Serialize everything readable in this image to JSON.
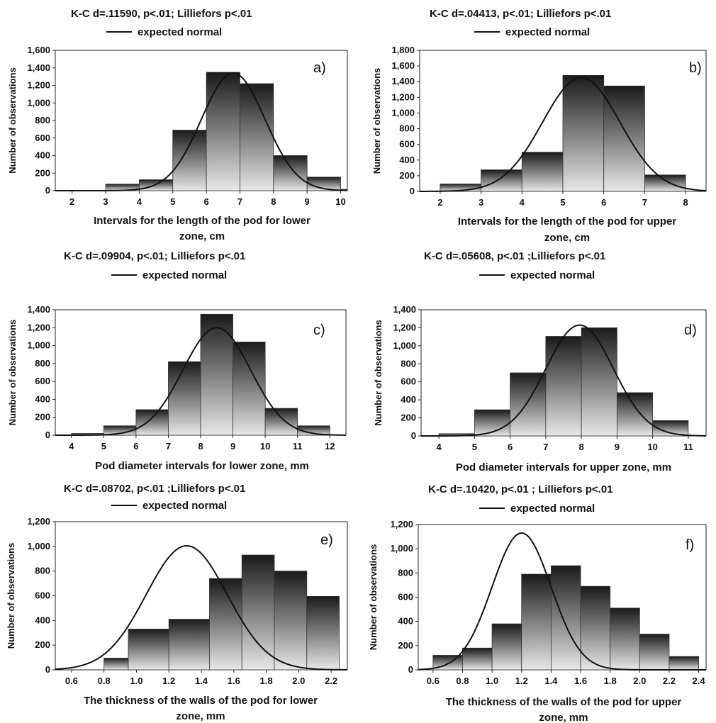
{
  "figure": {
    "panels": [
      {
        "id": "a",
        "panel_label": "a)",
        "stats_title": "K-C d=.11590, p<.01; Lilliefors p<.01",
        "legend_label": "expected normal",
        "ylabel": "Number of observations",
        "xlabel": [
          "Intervals for the length of the pod for lower",
          "zone, cm"
        ],
        "xticks": [
          "2",
          "3",
          "4",
          "5",
          "6",
          "7",
          "8",
          "9",
          "10"
        ],
        "yticks": [
          "0",
          "200",
          "400",
          "600",
          "800",
          "1,000",
          "1,200",
          "1,400",
          "1,600"
        ]
      },
      {
        "id": "b",
        "panel_label": "b)",
        "stats_title": "K-C d=.04413, p<.01; Lilliefors p<.01",
        "legend_label": "expected normal",
        "ylabel": "Number of observations",
        "xlabel": [
          "Intervals for the length of the pod for upper",
          "zone, cm"
        ],
        "xticks": [
          "2",
          "3",
          "4",
          "5",
          "6",
          "7",
          "8"
        ],
        "yticks": [
          "0",
          "200",
          "400",
          "600",
          "800",
          "1,000",
          "1,200",
          "1,400",
          "1,600",
          "1,800"
        ]
      },
      {
        "id": "c",
        "panel_label": "c)",
        "stats_title": "K-C d=.09904, p<.01; Lilliefors p<.01",
        "legend_label": "expected normal",
        "ylabel": "Number of observations",
        "xlabel": [
          "Pod diameter intervals for lower zone, mm"
        ],
        "xticks": [
          "4",
          "5",
          "6",
          "7",
          "8",
          "9",
          "10",
          "11",
          "12"
        ],
        "yticks": [
          "0",
          "200",
          "400",
          "600",
          "800",
          "1,000",
          "1,200",
          "1,400"
        ]
      },
      {
        "id": "d",
        "panel_label": "d)",
        "stats_title": "K-C d=.05608, p<.01 ;Lilliefors p<.01",
        "legend_label": "expected normal",
        "ylabel": "Number of observations",
        "xlabel": [
          "Pod diameter intervals for upper zone, mm"
        ],
        "xticks": [
          "4",
          "5",
          "6",
          "7",
          "8",
          "9",
          "10",
          "11"
        ],
        "yticks": [
          "0",
          "200",
          "400",
          "600",
          "800",
          "1,000",
          "1,200",
          "1,400"
        ]
      },
      {
        "id": "e",
        "panel_label": "e)",
        "stats_title": "K-C d=.08702, p<.01 ;Lilliefors p<.01",
        "legend_label": "expected normal",
        "ylabel": "Number of observations",
        "xlabel": [
          "The thickness of the walls of the pod for lower",
          "zone, mm"
        ],
        "xticks": [
          "0.6",
          "0.8",
          "1.0",
          "1.2",
          "1.4",
          "1.6",
          "1.8",
          "2.0",
          "2.2"
        ],
        "yticks": [
          "0",
          "200",
          "400",
          "600",
          "800",
          "1,000",
          "1,200"
        ]
      },
      {
        "id": "f",
        "panel_label": "f)",
        "stats_title": "K-C d=.10420, p<.01 ; Lilliefors p<.01",
        "legend_label": "expected normal",
        "ylabel": "Number of observations",
        "xlabel": [
          "The thickness of the walls of the pod for upper",
          "zone, mm"
        ],
        "xticks": [
          "0.6",
          "0.8",
          "1.0",
          "1.2",
          "1.4",
          "1.6",
          "1.8",
          "2.0",
          "2.2",
          "2.4"
        ],
        "yticks": [
          "0",
          "200",
          "400",
          "600",
          "800",
          "1,000",
          "1,200"
        ]
      }
    ]
  },
  "chart_data": [
    {
      "type": "bar",
      "panel": "a",
      "xlim": [
        1.5,
        10.2
      ],
      "ylim": [
        0,
        1600
      ],
      "bins": [
        [
          3,
          4,
          75
        ],
        [
          4,
          5,
          125
        ],
        [
          5,
          6,
          690
        ],
        [
          6,
          7,
          1350
        ],
        [
          7,
          8,
          1220
        ],
        [
          8,
          9,
          400
        ],
        [
          9,
          10,
          155
        ],
        [
          10,
          11,
          15
        ]
      ],
      "normal": {
        "peak": 1340,
        "mean": 6.8,
        "sd": 0.95
      }
    },
    {
      "type": "bar",
      "panel": "b",
      "xlim": [
        1.5,
        8.5
      ],
      "ylim": [
        0,
        1800
      ],
      "bins": [
        [
          2,
          3,
          95
        ],
        [
          3,
          4,
          275
        ],
        [
          4,
          5,
          500
        ],
        [
          5,
          6,
          1480
        ],
        [
          6,
          7,
          1345
        ],
        [
          7,
          8,
          210
        ]
      ],
      "normal": {
        "peak": 1450,
        "mean": 5.45,
        "sd": 0.95
      }
    },
    {
      "type": "bar",
      "panel": "c",
      "xlim": [
        3.5,
        12.5
      ],
      "ylim": [
        0,
        1400
      ],
      "bins": [
        [
          4,
          5,
          20
        ],
        [
          5,
          6,
          105
        ],
        [
          6,
          7,
          285
        ],
        [
          7,
          8,
          820
        ],
        [
          8,
          9,
          1350
        ],
        [
          9,
          10,
          1040
        ],
        [
          10,
          11,
          300
        ],
        [
          11,
          12,
          105
        ]
      ],
      "normal": {
        "peak": 1200,
        "mean": 8.5,
        "sd": 1.05
      }
    },
    {
      "type": "bar",
      "panel": "d",
      "xlim": [
        3.5,
        11.5
      ],
      "ylim": [
        0,
        1400
      ],
      "bins": [
        [
          4,
          5,
          25
        ],
        [
          5,
          6,
          290
        ],
        [
          6,
          7,
          700
        ],
        [
          7,
          8,
          1105
        ],
        [
          8,
          9,
          1200
        ],
        [
          9,
          10,
          480
        ],
        [
          10,
          11,
          170
        ]
      ],
      "normal": {
        "peak": 1230,
        "mean": 7.95,
        "sd": 0.95
      }
    },
    {
      "type": "bar",
      "panel": "e",
      "xlim": [
        0.5,
        2.3
      ],
      "ylim": [
        0,
        1200
      ],
      "bins": [
        [
          0.8,
          0.95,
          95
        ],
        [
          0.95,
          1.2,
          330
        ],
        [
          1.2,
          1.45,
          410
        ],
        [
          1.45,
          1.65,
          740
        ],
        [
          1.65,
          1.85,
          930
        ],
        [
          1.85,
          2.05,
          800
        ],
        [
          2.05,
          2.25,
          595
        ]
      ],
      "normal": {
        "peak": 1005,
        "mean": 1.31,
        "sd": 0.25
      }
    },
    {
      "type": "bar",
      "panel": "f",
      "xlim": [
        0.5,
        2.45
      ],
      "ylim": [
        0,
        1200
      ],
      "bins": [
        [
          0.6,
          0.8,
          120
        ],
        [
          0.8,
          1.0,
          180
        ],
        [
          1.0,
          1.2,
          380
        ],
        [
          1.2,
          1.4,
          790
        ],
        [
          1.4,
          1.6,
          860
        ],
        [
          1.6,
          1.8,
          690
        ],
        [
          1.8,
          2.0,
          510
        ],
        [
          2.0,
          2.2,
          295
        ],
        [
          2.2,
          2.4,
          110
        ]
      ],
      "normal": {
        "peak": 1130,
        "mean": 1.2,
        "sd": 0.2
      }
    }
  ]
}
